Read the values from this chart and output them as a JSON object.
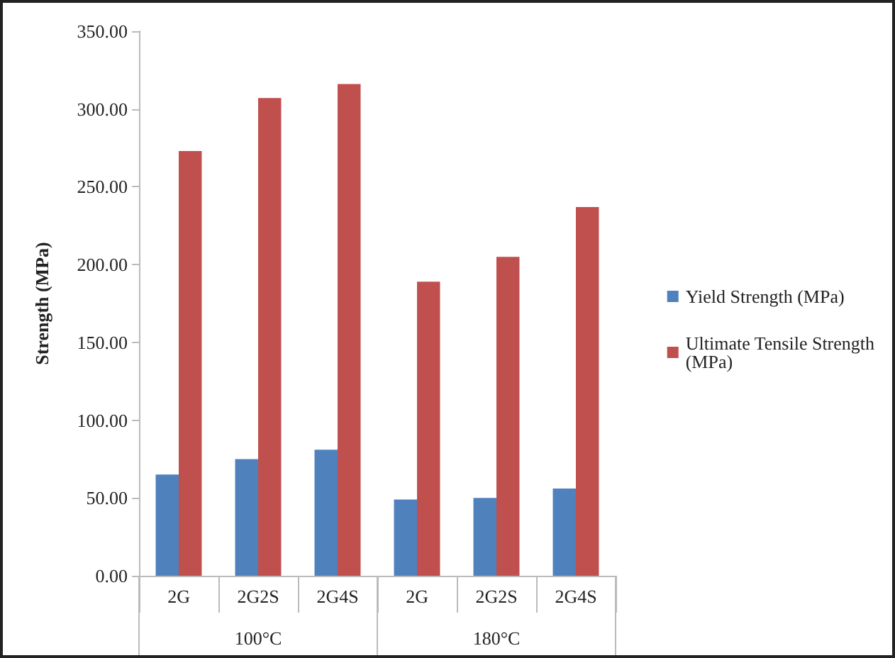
{
  "chart_data": {
    "type": "bar",
    "ylabel": "Strength (MPa)",
    "categories": [
      "2G",
      "2G2S",
      "2G4S",
      "2G",
      "2G2S",
      "2G4S"
    ],
    "annotations": [
      "100°C",
      "180°C"
    ],
    "series": [
      {
        "name": "Yield Strength (MPa)",
        "color": "#4f81bd",
        "values": [
          65,
          75,
          81,
          49,
          50,
          56
        ]
      },
      {
        "name": "Ultimate Tensile Strength (MPa)",
        "color": "#c0504d",
        "values": [
          273,
          307,
          316,
          189,
          205,
          237
        ]
      }
    ],
    "ylim": [
      0,
      350
    ],
    "yticks": [
      {
        "value": 0,
        "label": "0.00"
      },
      {
        "value": 50,
        "label": "50.00"
      },
      {
        "value": 100,
        "label": "100.00"
      },
      {
        "value": 150,
        "label": "150.00"
      },
      {
        "value": 200,
        "label": "200.00"
      },
      {
        "value": 250,
        "label": "250.00"
      },
      {
        "value": 300,
        "label": "300.00"
      },
      {
        "value": 350,
        "label": "350.00"
      }
    ],
    "grid": false,
    "legend": "right"
  }
}
